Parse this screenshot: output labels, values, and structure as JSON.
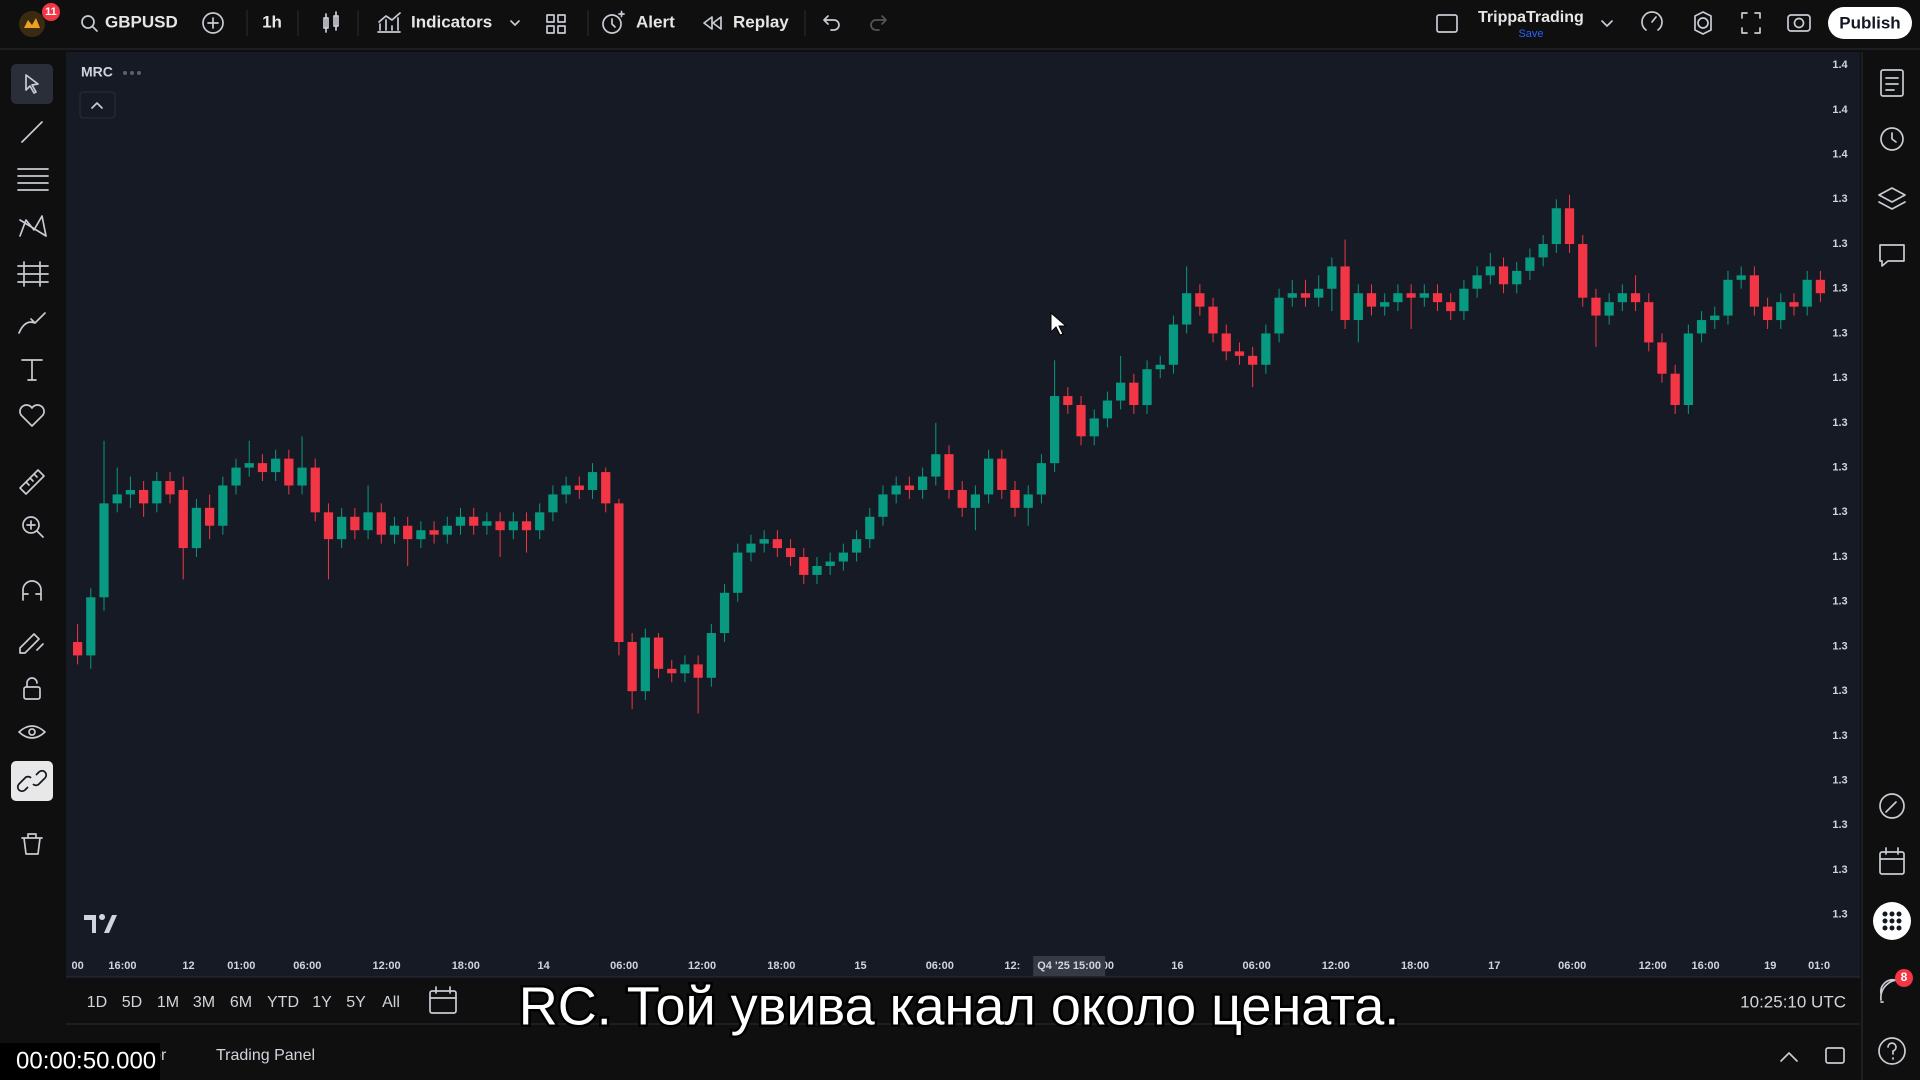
{
  "toolbar": {
    "badge": "11",
    "symbol": "GBPUSD",
    "interval": "1h",
    "indicators": "Indicators",
    "alert": "Alert",
    "replay": "Replay",
    "account": "TrippaTrading",
    "save": "Save",
    "publish": "Publish"
  },
  "chart_data": {
    "type": "candlestick",
    "legend_label": "MRC",
    "categories": [
      null,
      null,
      null,
      null,
      null,
      null,
      null,
      null,
      null,
      null,
      null,
      null,
      null,
      null,
      null,
      null,
      null,
      null,
      null,
      null,
      null,
      null,
      null,
      null,
      null,
      null,
      null,
      null,
      null,
      null,
      null,
      null,
      null,
      null,
      null,
      null,
      null,
      null,
      null,
      null,
      null,
      null,
      null,
      null,
      null,
      null,
      null,
      null,
      null,
      null,
      null,
      null,
      null,
      null,
      null,
      null,
      null,
      null,
      null,
      null,
      null,
      null,
      null,
      null,
      null,
      null,
      null,
      null,
      null,
      null,
      null,
      null,
      null,
      null,
      null,
      null,
      null,
      null,
      null,
      null,
      null,
      null,
      null,
      null,
      null,
      null,
      null,
      null,
      null,
      null,
      null,
      null,
      null,
      null,
      null,
      null,
      null,
      null,
      null,
      null,
      null,
      null,
      null,
      null,
      null,
      null,
      null,
      null,
      null,
      null,
      null,
      null,
      null,
      null,
      null,
      null,
      null,
      null,
      null,
      null,
      null,
      null,
      null,
      null,
      null,
      null,
      null,
      null,
      null,
      null,
      null,
      null,
      null
    ],
    "open": [
      1.3391,
      1.3388,
      1.3401,
      1.3422,
      1.3424,
      1.3425,
      1.3422,
      1.3427,
      1.3425,
      1.3412,
      1.3421,
      1.3417,
      1.3426,
      1.343,
      1.3431,
      1.3429,
      1.3432,
      1.3426,
      1.343,
      1.342,
      1.3414,
      1.3419,
      1.3416,
      1.342,
      1.3415,
      1.3417,
      1.3414,
      1.3416,
      1.3415,
      1.3417,
      1.3419,
      1.3417,
      1.3418,
      1.3416,
      1.3418,
      1.3416,
      1.342,
      1.3424,
      1.3426,
      1.3425,
      1.3429,
      1.3422,
      1.3391,
      1.338,
      1.3392,
      1.3385,
      1.3384,
      1.3386,
      1.3383,
      1.3393,
      1.3402,
      1.3411,
      1.3413,
      1.3414,
      1.3412,
      1.341,
      1.3406,
      1.3408,
      1.3409,
      1.3411,
      1.3414,
      1.3419,
      1.3424,
      1.3426,
      1.3425,
      1.3428,
      1.3433,
      1.3425,
      1.3421,
      1.3424,
      1.3432,
      1.3425,
      1.3421,
      1.3424,
      1.3431,
      1.3446,
      1.3444,
      1.3437,
      1.3441,
      1.3445,
      1.3449,
      1.3444,
      1.3452,
      1.3453,
      1.3462,
      1.3469,
      1.3466,
      1.346,
      1.3456,
      1.3455,
      1.3453,
      1.346,
      1.3468,
      1.3469,
      1.3468,
      1.347,
      1.3475,
      1.3463,
      1.3469,
      1.3466,
      1.3467,
      1.3469,
      1.3468,
      1.3469,
      1.3467,
      1.3465,
      1.347,
      1.3473,
      1.3475,
      1.3471,
      1.3474,
      1.3477,
      1.348,
      1.3488,
      1.348,
      1.3468,
      1.3464,
      1.3467,
      1.3469,
      1.3467,
      1.3458,
      1.3451,
      1.3444,
      1.346,
      1.3463,
      1.3464,
      1.3472,
      1.3473,
      1.3466,
      1.3463,
      1.3467,
      1.3466,
      1.3472
    ],
    "high": [
      1.3395,
      1.3403,
      1.3436,
      1.343,
      1.3428,
      1.3427,
      1.3429,
      1.3429,
      1.3428,
      1.3423,
      1.3424,
      1.3428,
      1.3432,
      1.3436,
      1.3433,
      1.3434,
      1.3434,
      1.3437,
      1.3432,
      1.3422,
      1.3421,
      1.3421,
      1.3426,
      1.3422,
      1.3419,
      1.3419,
      1.3418,
      1.3418,
      1.3419,
      1.3421,
      1.3421,
      1.342,
      1.342,
      1.342,
      1.342,
      1.3422,
      1.3426,
      1.3428,
      1.3428,
      1.3431,
      1.343,
      1.3423,
      1.3393,
      1.3394,
      1.3393,
      1.3387,
      1.3388,
      1.3388,
      1.3395,
      1.3404,
      1.3413,
      1.3415,
      1.3416,
      1.3416,
      1.3414,
      1.3412,
      1.341,
      1.3411,
      1.3413,
      1.3416,
      1.3421,
      1.3426,
      1.3428,
      1.3428,
      1.343,
      1.344,
      1.3435,
      1.3427,
      1.3426,
      1.3434,
      1.3434,
      1.3427,
      1.3426,
      1.3433,
      1.3454,
      1.3448,
      1.3446,
      1.3443,
      1.3447,
      1.3455,
      1.3451,
      1.3454,
      1.3455,
      1.3464,
      1.3475,
      1.3471,
      1.3468,
      1.3462,
      1.3458,
      1.3457,
      1.3462,
      1.347,
      1.3472,
      1.3472,
      1.3473,
      1.3477,
      1.3481,
      1.3471,
      1.3471,
      1.3469,
      1.3471,
      1.3471,
      1.3471,
      1.3471,
      1.3469,
      1.3472,
      1.3475,
      1.3478,
      1.3477,
      1.3476,
      1.3479,
      1.3482,
      1.349,
      1.3491,
      1.3482,
      1.347,
      1.3469,
      1.3471,
      1.3473,
      1.3469,
      1.346,
      1.3453,
      1.3462,
      1.3465,
      1.3466,
      1.3474,
      1.3475,
      1.3475,
      1.3468,
      1.3469,
      1.3469,
      1.3474,
      1.3474
    ],
    "low": [
      1.3386,
      1.3385,
      1.3398,
      1.342,
      1.3421,
      1.3419,
      1.342,
      1.3422,
      1.3405,
      1.341,
      1.3414,
      1.3415,
      1.3424,
      1.3428,
      1.3427,
      1.3427,
      1.3424,
      1.3424,
      1.3418,
      1.3405,
      1.3412,
      1.3414,
      1.3414,
      1.3413,
      1.3413,
      1.3408,
      1.3412,
      1.3413,
      1.3413,
      1.3415,
      1.3415,
      1.3415,
      1.341,
      1.3414,
      1.3411,
      1.3414,
      1.3418,
      1.3422,
      1.3423,
      1.3423,
      1.342,
      1.3388,
      1.3376,
      1.3378,
      1.3383,
      1.3382,
      1.3382,
      1.3375,
      1.3381,
      1.3391,
      1.34,
      1.3409,
      1.3411,
      1.341,
      1.3408,
      1.3404,
      1.3404,
      1.3406,
      1.3407,
      1.3409,
      1.3412,
      1.3417,
      1.3422,
      1.3423,
      1.3423,
      1.3426,
      1.3423,
      1.3419,
      1.3416,
      1.3422,
      1.3423,
      1.3419,
      1.3417,
      1.3422,
      1.3429,
      1.3442,
      1.3435,
      1.3435,
      1.3439,
      1.3443,
      1.3442,
      1.3442,
      1.345,
      1.3451,
      1.346,
      1.3464,
      1.3458,
      1.3454,
      1.3453,
      1.3448,
      1.3451,
      1.3458,
      1.3466,
      1.3466,
      1.3466,
      1.3465,
      1.3461,
      1.3458,
      1.3464,
      1.3464,
      1.3465,
      1.3461,
      1.3466,
      1.3465,
      1.3463,
      1.3463,
      1.3468,
      1.3471,
      1.3469,
      1.3469,
      1.3472,
      1.3475,
      1.3478,
      1.3478,
      1.3466,
      1.3457,
      1.3462,
      1.3465,
      1.3465,
      1.3456,
      1.3449,
      1.3442,
      1.3442,
      1.3458,
      1.3461,
      1.3462,
      1.347,
      1.3464,
      1.3461,
      1.3461,
      1.3464,
      1.3464,
      1.3467
    ],
    "close": [
      1.3388,
      1.3401,
      1.3422,
      1.3424,
      1.3425,
      1.3422,
      1.3427,
      1.3424,
      1.3412,
      1.3421,
      1.3417,
      1.3426,
      1.343,
      1.3431,
      1.3429,
      1.3432,
      1.3426,
      1.343,
      1.342,
      1.3414,
      1.3419,
      1.3416,
      1.342,
      1.3415,
      1.3417,
      1.3414,
      1.3416,
      1.3415,
      1.3417,
      1.3419,
      1.3417,
      1.3418,
      1.3416,
      1.3418,
      1.3416,
      1.342,
      1.3424,
      1.3426,
      1.3425,
      1.3429,
      1.3422,
      1.3391,
      1.338,
      1.3392,
      1.3385,
      1.3384,
      1.3386,
      1.3383,
      1.3393,
      1.3402,
      1.3411,
      1.3413,
      1.3414,
      1.3412,
      1.341,
      1.3406,
      1.3408,
      1.3409,
      1.3411,
      1.3414,
      1.3419,
      1.3424,
      1.3426,
      1.3425,
      1.3428,
      1.3433,
      1.3425,
      1.3421,
      1.3424,
      1.3432,
      1.3425,
      1.3421,
      1.3424,
      1.3431,
      1.3446,
      1.3444,
      1.3437,
      1.3441,
      1.3445,
      1.3449,
      1.3444,
      1.3452,
      1.3453,
      1.3462,
      1.3469,
      1.3466,
      1.346,
      1.3456,
      1.3455,
      1.3453,
      1.346,
      1.3468,
      1.3469,
      1.3468,
      1.347,
      1.3475,
      1.3463,
      1.3469,
      1.3466,
      1.3467,
      1.3469,
      1.3468,
      1.3469,
      1.3467,
      1.3465,
      1.347,
      1.3473,
      1.3475,
      1.3471,
      1.3474,
      1.3477,
      1.348,
      1.3488,
      1.348,
      1.3468,
      1.3464,
      1.3467,
      1.3469,
      1.3467,
      1.3458,
      1.3451,
      1.3444,
      1.346,
      1.3463,
      1.3464,
      1.3472,
      1.3473,
      1.3466,
      1.3463,
      1.3467,
      1.3466,
      1.3472,
      1.3469
    ],
    "up_color": "#089981",
    "down_color": "#f23645",
    "ylim": [
      1.3321,
      1.35225
    ],
    "yticks": [
      {
        "value": 1.352,
        "label": "1.4"
      },
      {
        "value": 1.351,
        "label": "1.4"
      },
      {
        "value": 1.35,
        "label": "1.4"
      },
      {
        "value": 1.349,
        "label": "1.3"
      },
      {
        "value": 1.348,
        "label": "1.3"
      },
      {
        "value": 1.347,
        "label": "1.3"
      },
      {
        "value": 1.346,
        "label": "1.3"
      },
      {
        "value": 1.345,
        "label": "1.3"
      },
      {
        "value": 1.344,
        "label": "1.3"
      },
      {
        "value": 1.343,
        "label": "1.3"
      },
      {
        "value": 1.342,
        "label": "1.3"
      },
      {
        "value": 1.341,
        "label": "1.3"
      },
      {
        "value": 1.34,
        "label": "1.3"
      },
      {
        "value": 1.339,
        "label": "1.3"
      },
      {
        "value": 1.338,
        "label": "1.3"
      },
      {
        "value": 1.337,
        "label": "1.3"
      },
      {
        "value": 1.336,
        "label": "1.3"
      },
      {
        "value": 1.335,
        "label": "1.3"
      },
      {
        "value": 1.334,
        "label": "1.3"
      },
      {
        "value": 1.333,
        "label": "1.3"
      }
    ],
    "xticks": [
      {
        "value": 0,
        "label": "00"
      },
      {
        "value": 3.4,
        "label": "16:00"
      },
      {
        "value": 8.4,
        "label": "12"
      },
      {
        "value": 12.4,
        "label": "01:00"
      },
      {
        "value": 17.4,
        "label": "06:00"
      },
      {
        "value": 23.4,
        "label": "12:00"
      },
      {
        "value": 29.4,
        "label": "18:00"
      },
      {
        "value": 35.3,
        "label": "14"
      },
      {
        "value": 41.4,
        "label": "06:00"
      },
      {
        "value": 47.3,
        "label": "12:00"
      },
      {
        "value": 53.3,
        "label": "18:00"
      },
      {
        "value": 59.3,
        "label": "15"
      },
      {
        "value": 65.3,
        "label": "06:00"
      },
      {
        "value": 70.8,
        "label": "12:"
      },
      {
        "value": 77.9,
        "label": ":00"
      },
      {
        "value": 83.3,
        "label": "16"
      },
      {
        "value": 89.3,
        "label": "06:00"
      },
      {
        "value": 95.3,
        "label": "12:00"
      },
      {
        "value": 101.3,
        "label": "18:00"
      },
      {
        "value": 107.3,
        "label": "17"
      },
      {
        "value": 113.2,
        "label": "06:00"
      },
      {
        "value": 119.3,
        "label": "12:00"
      },
      {
        "value": 123.3,
        "label": "16:00"
      },
      {
        "value": 128.2,
        "label": "19"
      },
      {
        "value": 131.9,
        "label": "01:0"
      }
    ],
    "crosshair": {
      "value": 75.1,
      "label": "Q4 '25  15:00"
    }
  },
  "range_buttons": [
    "1D",
    "5D",
    "1M",
    "3M",
    "6M",
    "YTD",
    "1Y",
    "5Y",
    "All"
  ],
  "clock": "10:25:10 UTC",
  "bottom_tabs": [
    "Pine Editor",
    "Trading Panel"
  ],
  "right_badge": "8",
  "subtitle": "RC. Той увива канал около цената.",
  "timestamp": "00:00:50.000"
}
